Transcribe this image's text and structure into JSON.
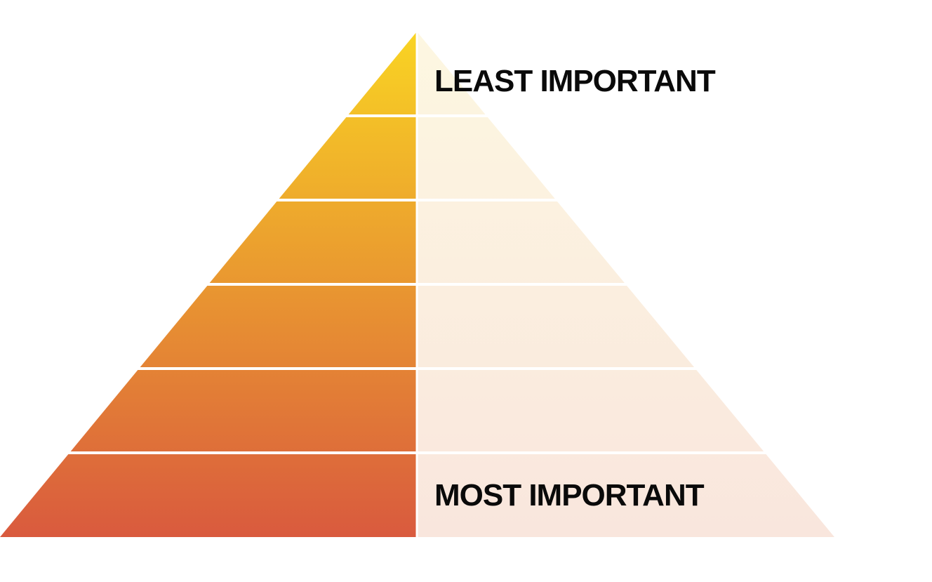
{
  "diagram": {
    "top_label": "LEAST IMPORTANT",
    "bottom_label": "MOST IMPORTANT",
    "tier_count": 6,
    "colors": {
      "left_gradient_top": "#f9d423",
      "left_gradient_bottom": "#d95a3e",
      "right_gradient_top": "#fdf7e1",
      "right_gradient_bottom": "#f9e6dd",
      "divider": "#ffffff",
      "label_text": "#0a0a0a"
    }
  }
}
